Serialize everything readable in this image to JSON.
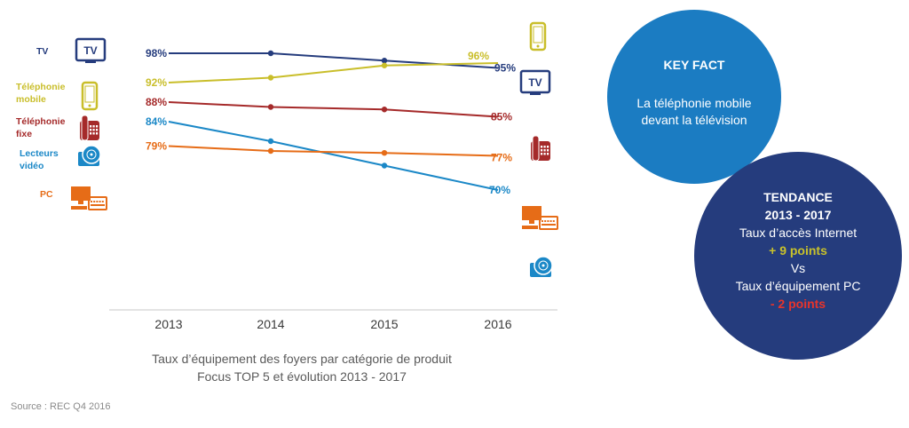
{
  "colors": {
    "tv": "#253c7d",
    "mobile": "#c9be2a",
    "fixed": "#a52a2a",
    "video": "#1b88c7",
    "pc": "#e66c17",
    "keyfact_bg": "#1b7cc2",
    "tendance_bg": "#253c7d"
  },
  "legend": [
    {
      "label": "TV",
      "icon": "tv-icon",
      "color": "#253c7d"
    },
    {
      "label": "Téléphonie mobile",
      "icon": "mobile-phone-icon",
      "color": "#c9be2a"
    },
    {
      "label": "Téléphonie fixe",
      "icon": "landline-phone-icon",
      "color": "#a52a2a"
    },
    {
      "label": "Lecteurs vidéo",
      "icon": "video-player-icon",
      "color": "#1b88c7"
    },
    {
      "label": "PC",
      "icon": "computer-icon",
      "color": "#e66c17"
    }
  ],
  "chart_data": {
    "type": "line",
    "x": [
      "2013",
      "2014",
      "2015",
      "2016"
    ],
    "ylim": [
      65,
      100
    ],
    "series": [
      {
        "name": "TV",
        "values": [
          98,
          98,
          96.5,
          95
        ],
        "labels": [
          "98%",
          "95%"
        ],
        "color": "#253c7d",
        "icon": "tv-icon"
      },
      {
        "name": "Téléphonie mobile",
        "values": [
          92,
          93,
          95.5,
          96
        ],
        "labels": [
          "92%",
          "96%"
        ],
        "color": "#c9be2a",
        "icon": "mobile-phone-icon"
      },
      {
        "name": "Téléphonie fixe",
        "values": [
          88,
          87,
          86.5,
          85
        ],
        "labels": [
          "88%",
          "85%"
        ],
        "color": "#a52a2a",
        "icon": "landline-phone-icon"
      },
      {
        "name": "Lecteurs vidéo",
        "values": [
          84,
          80,
          75,
          70
        ],
        "labels": [
          "84%",
          "70%"
        ],
        "color": "#1b88c7",
        "icon": "video-player-icon"
      },
      {
        "name": "PC",
        "values": [
          79,
          78,
          77.6,
          77
        ],
        "labels": [
          "79%",
          "77%"
        ],
        "color": "#e66c17",
        "icon": "computer-icon"
      }
    ],
    "grid": false,
    "legend_position": "left",
    "caption": [
      "Taux d’équipement des foyers par catégorie de produit",
      "Focus TOP 5 et évolution 2013 - 2017"
    ]
  },
  "source": "Source : REC Q4 2016",
  "key_fact": {
    "title": "KEY FACT",
    "body": "La téléphonie mobile devant la télévision"
  },
  "tendance": {
    "title": "TENDANCE",
    "period": "2013 - 2017",
    "line1": "Taux d’accès Internet",
    "plus": "+ 9 points",
    "vs": "Vs",
    "line2": "Taux d’équipement PC",
    "minus": "- 2 points"
  }
}
